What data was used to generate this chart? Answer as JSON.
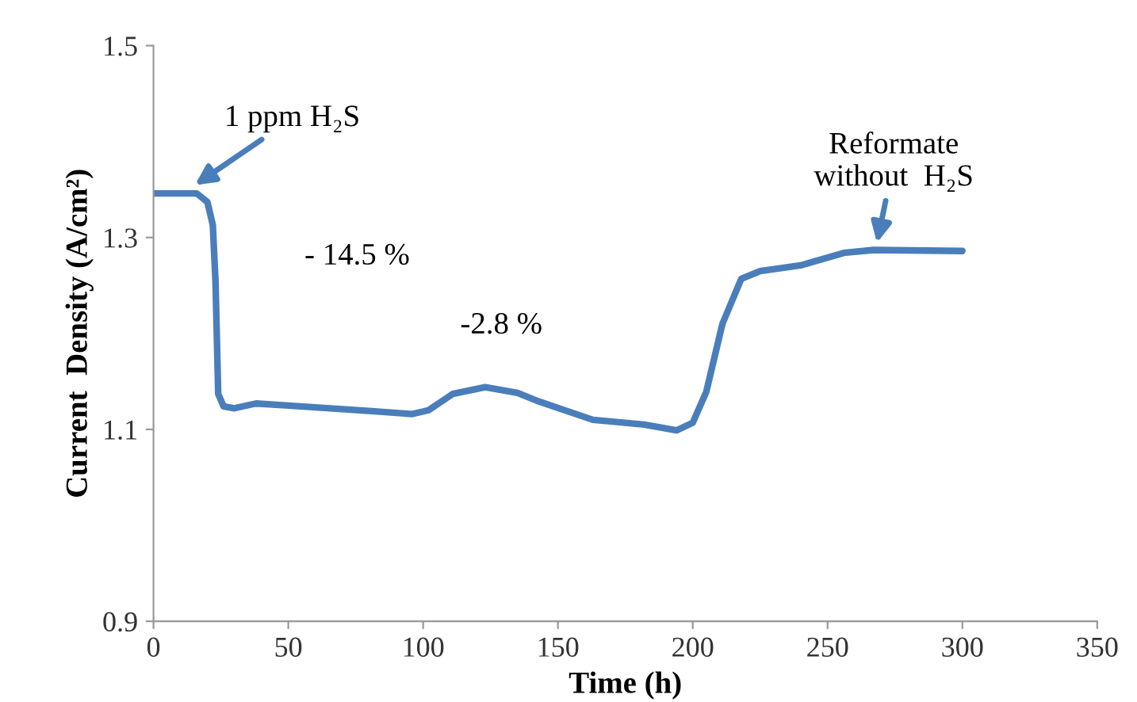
{
  "chart_data": {
    "type": "line",
    "xlabel": "Time (h)",
    "ylabel": "Current  Density (A/cm²)",
    "x": [
      0,
      16,
      20,
      22,
      23,
      24,
      26,
      30,
      38,
      49,
      81,
      96,
      102,
      111,
      123,
      135,
      143,
      163,
      182,
      194,
      200,
      205,
      211,
      218,
      225,
      240,
      256,
      267,
      300
    ],
    "series": [
      {
        "color": "#4a7ebb",
        "values": [
          1.346,
          1.346,
          1.337,
          1.313,
          1.254,
          1.137,
          1.124,
          1.122,
          1.127,
          1.125,
          1.119,
          1.116,
          1.12,
          1.137,
          1.144,
          1.138,
          1.129,
          1.11,
          1.105,
          1.099,
          1.107,
          1.139,
          1.21,
          1.257,
          1.265,
          1.271,
          1.284,
          1.287,
          1.286
        ]
      }
    ],
    "xlim": [
      0,
      350
    ],
    "xticks": [
      0,
      50,
      100,
      150,
      200,
      250,
      300,
      350
    ],
    "ylim": [
      0.9,
      1.5
    ],
    "yticks": [
      0.9,
      1.1,
      1.3,
      1.5
    ],
    "grid": false,
    "legend": false,
    "marker": "none",
    "line_style": "solid",
    "annotations": [
      {
        "text": "1 ppm H₂S",
        "x": 14,
        "y": 1.352
      },
      "- 14.5 %",
      "-2.8 %",
      {
        "text": "Reformate\nwithout  H₂S",
        "x": 268,
        "y": 1.29
      }
    ]
  }
}
